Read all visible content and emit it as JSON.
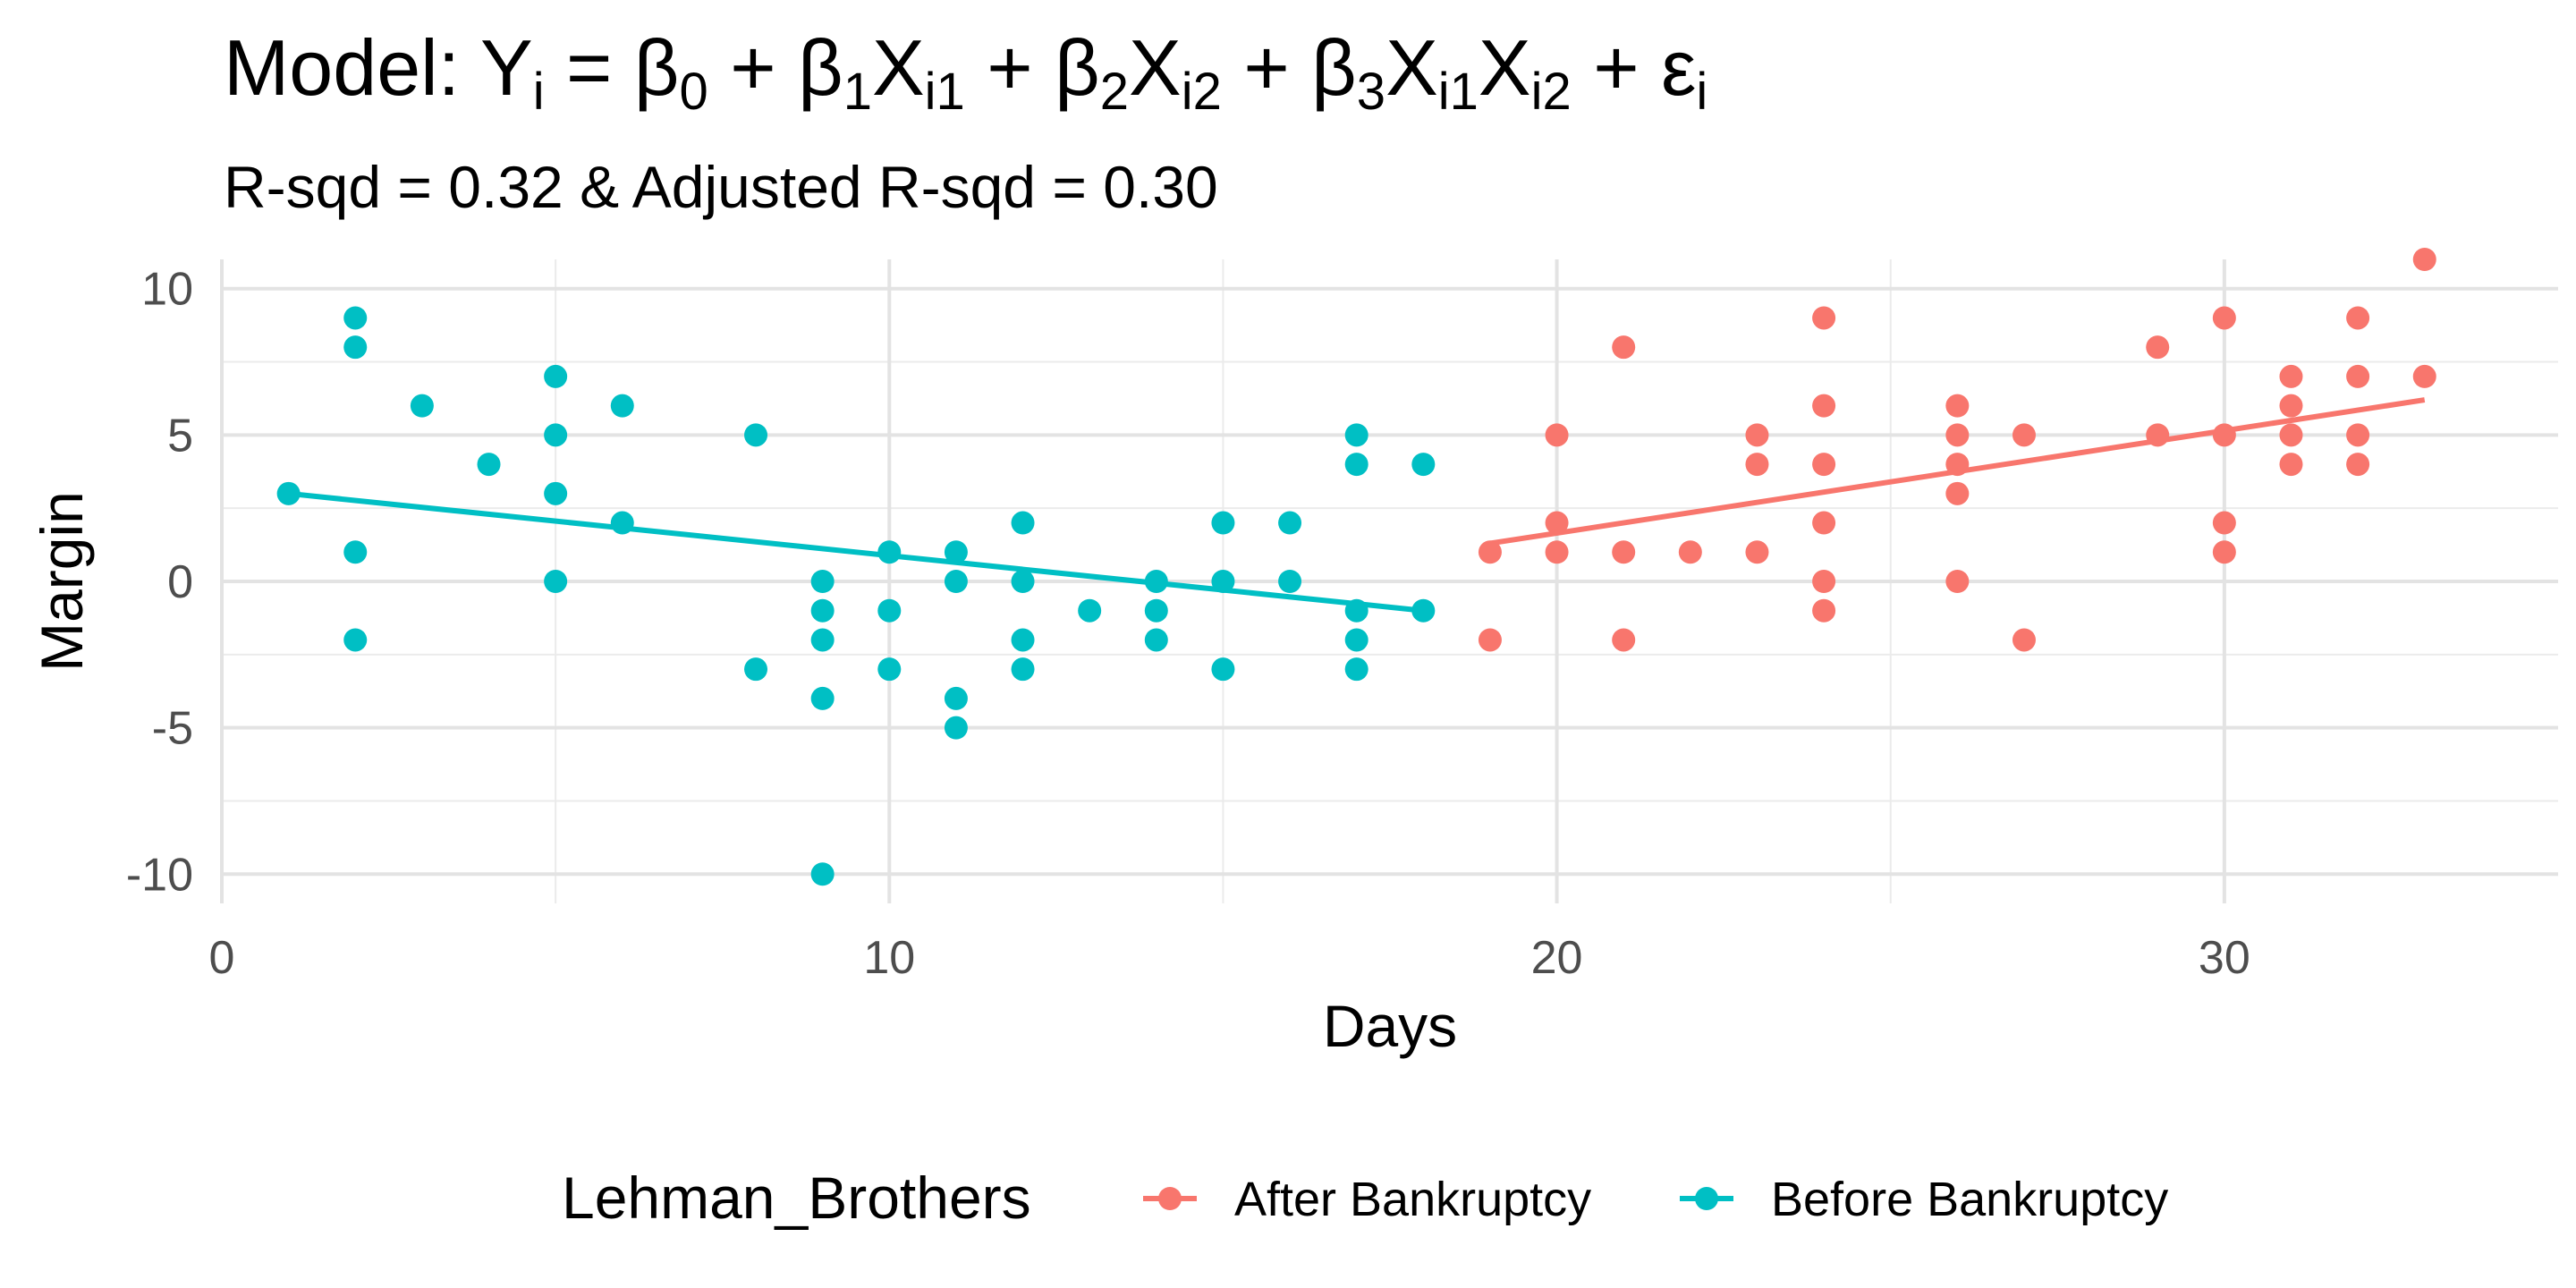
{
  "chart_data": {
    "type": "scatter",
    "title": {
      "prefix": "Model: ",
      "parts": [
        {
          "t": "Y"
        },
        {
          "t": "i",
          "sub": true
        },
        {
          "t": " = "
        },
        {
          "t": "β"
        },
        {
          "t": "0",
          "sub": true
        },
        {
          "t": " + "
        },
        {
          "t": "β"
        },
        {
          "t": "1",
          "sub": true
        },
        {
          "t": "X"
        },
        {
          "t": "i1",
          "sub": true
        },
        {
          "t": " + "
        },
        {
          "t": "β"
        },
        {
          "t": "2",
          "sub": true
        },
        {
          "t": "X"
        },
        {
          "t": "i2",
          "sub": true
        },
        {
          "t": " + "
        },
        {
          "t": "β"
        },
        {
          "t": "3",
          "sub": true
        },
        {
          "t": "X"
        },
        {
          "t": "i1",
          "sub": true
        },
        {
          "t": "X"
        },
        {
          "t": "i2",
          "sub": true
        },
        {
          "t": " + "
        },
        {
          "t": "ε"
        },
        {
          "t": "i",
          "sub": true
        }
      ]
    },
    "subtitle": "R-sqd = 0.32 & Adjusted R-sqd = 0.30",
    "xlabel": "Days",
    "ylabel": "Margin",
    "xlim": [
      0,
      35
    ],
    "ylim": [
      -11,
      11
    ],
    "x_ticks": [
      0,
      10,
      20,
      30
    ],
    "y_ticks": [
      10,
      5,
      0,
      -5,
      -10
    ],
    "x_tick_labels": [
      "0",
      "10",
      "20",
      "30"
    ],
    "y_tick_labels": [
      "10",
      "5",
      "0",
      "-5",
      "-10"
    ],
    "grid": true,
    "legend": {
      "title": "Lehman_Brothers",
      "position": "bottom",
      "entries": [
        "After Bankruptcy",
        "Before Bankruptcy"
      ]
    },
    "series": [
      {
        "name": "After Bankruptcy",
        "color": "#F8766D",
        "points": [
          [
            19,
            1
          ],
          [
            19,
            -2
          ],
          [
            20,
            5
          ],
          [
            20,
            2
          ],
          [
            20,
            1
          ],
          [
            21,
            8
          ],
          [
            21,
            1
          ],
          [
            21,
            -2
          ],
          [
            22,
            1
          ],
          [
            23,
            5
          ],
          [
            23,
            4
          ],
          [
            23,
            1
          ],
          [
            24,
            9
          ],
          [
            24,
            6
          ],
          [
            24,
            4
          ],
          [
            24,
            2
          ],
          [
            24,
            0
          ],
          [
            24,
            -1
          ],
          [
            26,
            6
          ],
          [
            26,
            5
          ],
          [
            26,
            4
          ],
          [
            26,
            3
          ],
          [
            26,
            0
          ],
          [
            27,
            5
          ],
          [
            27,
            -2
          ],
          [
            29,
            8
          ],
          [
            29,
            5
          ],
          [
            30,
            9
          ],
          [
            30,
            5
          ],
          [
            30,
            2
          ],
          [
            30,
            1
          ],
          [
            31,
            7
          ],
          [
            31,
            6
          ],
          [
            31,
            5
          ],
          [
            31,
            4
          ],
          [
            32,
            9
          ],
          [
            32,
            7
          ],
          [
            32,
            5
          ],
          [
            32,
            4
          ],
          [
            33,
            11
          ],
          [
            33,
            7
          ]
        ],
        "fit_line": {
          "x": [
            19,
            33
          ],
          "y": [
            1.3,
            6.2
          ]
        }
      },
      {
        "name": "Before Bankruptcy",
        "color": "#00BFC4",
        "points": [
          [
            1,
            3
          ],
          [
            2,
            9
          ],
          [
            2,
            8
          ],
          [
            2,
            1
          ],
          [
            2,
            -2
          ],
          [
            3,
            6
          ],
          [
            4,
            4
          ],
          [
            5,
            7
          ],
          [
            5,
            5
          ],
          [
            5,
            3
          ],
          [
            5,
            0
          ],
          [
            6,
            6
          ],
          [
            6,
            2
          ],
          [
            8,
            5
          ],
          [
            8,
            -3
          ],
          [
            9,
            0
          ],
          [
            9,
            -1
          ],
          [
            9,
            -2
          ],
          [
            9,
            -4
          ],
          [
            9,
            -10
          ],
          [
            10,
            1
          ],
          [
            10,
            -1
          ],
          [
            10,
            -3
          ],
          [
            11,
            1
          ],
          [
            11,
            0
          ],
          [
            11,
            -4
          ],
          [
            11,
            -5
          ],
          [
            12,
            2
          ],
          [
            12,
            0
          ],
          [
            12,
            -2
          ],
          [
            12,
            -3
          ],
          [
            13,
            -1
          ],
          [
            14,
            0
          ],
          [
            14,
            -1
          ],
          [
            14,
            -2
          ],
          [
            15,
            2
          ],
          [
            15,
            0
          ],
          [
            15,
            -3
          ],
          [
            16,
            2
          ],
          [
            16,
            0
          ],
          [
            17,
            5
          ],
          [
            17,
            4
          ],
          [
            17,
            -1
          ],
          [
            17,
            -2
          ],
          [
            17,
            -3
          ],
          [
            18,
            4
          ],
          [
            18,
            -1
          ]
        ],
        "fit_line": {
          "x": [
            1,
            18
          ],
          "y": [
            3.0,
            -1.0
          ]
        }
      }
    ]
  }
}
